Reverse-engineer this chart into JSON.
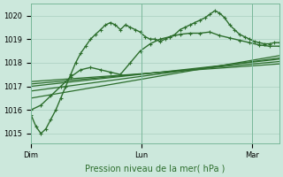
{
  "xlabel": "Pression niveau de la mer( hPa )",
  "bg_color": "#cce8dc",
  "grid_color": "#aacfc0",
  "line_color": "#2d6e2d",
  "ylim": [
    1014.6,
    1020.5
  ],
  "yticks": [
    1015,
    1016,
    1017,
    1018,
    1019,
    1020
  ],
  "xtick_labels": [
    "Dim",
    "Lun",
    "Mar"
  ],
  "xtick_positions": [
    0.0,
    0.444,
    0.889
  ],
  "series": [
    {
      "x": [
        0.0,
        0.02,
        0.04,
        0.06,
        0.08,
        0.1,
        0.12,
        0.14,
        0.16,
        0.18,
        0.2,
        0.22,
        0.24,
        0.26,
        0.28,
        0.3,
        0.32,
        0.34,
        0.36,
        0.38,
        0.4,
        0.42,
        0.44,
        0.46,
        0.48,
        0.5,
        0.52,
        0.54,
        0.56,
        0.58,
        0.6,
        0.62,
        0.64,
        0.66,
        0.68,
        0.7,
        0.72,
        0.74,
        0.76,
        0.78,
        0.8,
        0.82,
        0.84,
        0.86,
        0.88,
        0.9,
        0.92,
        0.94,
        0.96,
        0.98,
        1.0
      ],
      "y": [
        1015.8,
        1015.3,
        1015.0,
        1015.2,
        1015.6,
        1016.0,
        1016.5,
        1017.0,
        1017.5,
        1018.0,
        1018.4,
        1018.7,
        1019.0,
        1019.2,
        1019.4,
        1019.6,
        1019.7,
        1019.6,
        1019.4,
        1019.6,
        1019.5,
        1019.4,
        1019.3,
        1019.1,
        1019.0,
        1019.0,
        1018.9,
        1019.0,
        1019.1,
        1019.2,
        1019.4,
        1019.5,
        1019.6,
        1019.7,
        1019.8,
        1019.9,
        1020.05,
        1020.2,
        1020.1,
        1019.9,
        1019.6,
        1019.4,
        1019.2,
        1019.1,
        1019.0,
        1018.9,
        1018.85,
        1018.8,
        1018.8,
        1018.85,
        1018.85
      ],
      "marker": true,
      "linewidth": 1.0
    },
    {
      "x": [
        0.0,
        0.04,
        0.08,
        0.12,
        0.16,
        0.2,
        0.24,
        0.28,
        0.32,
        0.36,
        0.4,
        0.44,
        0.48,
        0.52,
        0.56,
        0.6,
        0.64,
        0.68,
        0.72,
        0.76,
        0.8,
        0.84,
        0.88,
        0.92,
        0.96,
        1.0
      ],
      "y": [
        1016.0,
        1016.2,
        1016.6,
        1017.0,
        1017.4,
        1017.7,
        1017.8,
        1017.7,
        1017.6,
        1017.5,
        1018.0,
        1018.5,
        1018.8,
        1019.0,
        1019.1,
        1019.2,
        1019.25,
        1019.25,
        1019.3,
        1019.15,
        1019.05,
        1018.95,
        1018.85,
        1018.75,
        1018.7,
        1018.7
      ],
      "marker": true,
      "linewidth": 1.0
    },
    {
      "x": [
        0.0,
        1.0
      ],
      "y": [
        1016.5,
        1018.3
      ],
      "marker": false,
      "linewidth": 0.9
    },
    {
      "x": [
        0.0,
        1.0
      ],
      "y": [
        1016.8,
        1018.2
      ],
      "marker": false,
      "linewidth": 0.9
    },
    {
      "x": [
        0.0,
        1.0
      ],
      "y": [
        1017.0,
        1018.15
      ],
      "marker": false,
      "linewidth": 0.9
    },
    {
      "x": [
        0.0,
        1.0
      ],
      "y": [
        1017.1,
        1018.05
      ],
      "marker": false,
      "linewidth": 0.9
    },
    {
      "x": [
        0.0,
        1.0
      ],
      "y": [
        1017.2,
        1017.95
      ],
      "marker": false,
      "linewidth": 0.9
    }
  ],
  "marker_style": "+",
  "markersize": 3.0,
  "xlabel_fontsize": 7,
  "ytick_fontsize": 6,
  "xtick_fontsize": 6
}
